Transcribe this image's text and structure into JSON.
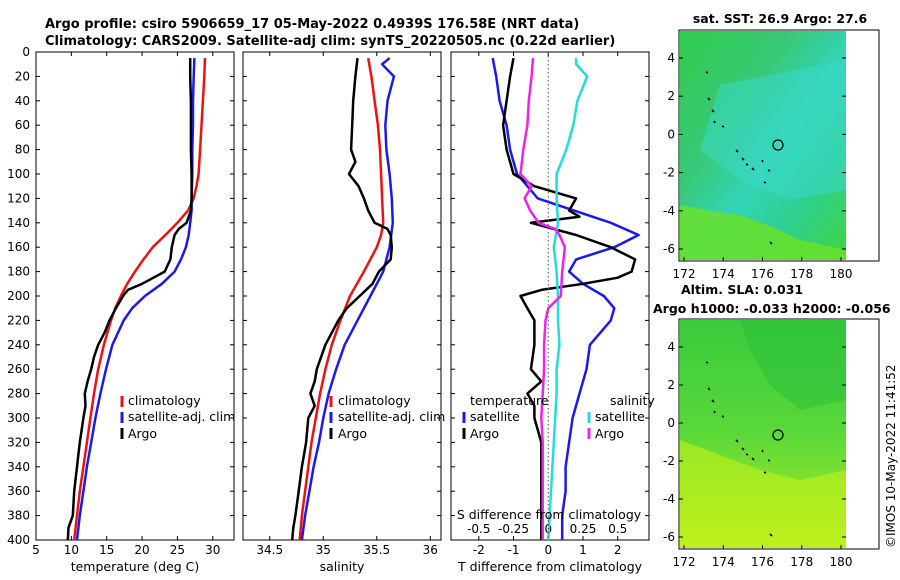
{
  "header": {
    "title_line1": "Argo profile: csiro 5906659_17 05-May-2022 0.4939S 176.58E (NRT data)",
    "title_line2": "Climatology: CARS2009. Satellite-adj clim: synTS_20220505.nc (0.22d earlier)"
  },
  "colors": {
    "climatology": "#ee1111",
    "satellite": "#1a1aee",
    "argo": "#000000",
    "temp_diff_argo": "#000000",
    "sal_satellite": "#22dddd",
    "sal_argo": "#ee22ee",
    "zero_line": "#555555"
  },
  "chart_data": [
    {
      "type": "line",
      "panel": "temperature",
      "xlabel": "temperature (deg C)",
      "ylabel": "",
      "xlim": [
        5,
        33
      ],
      "ylim": [
        400,
        0
      ],
      "xticks": [
        5,
        10,
        15,
        20,
        25,
        30
      ],
      "yticks": [
        0,
        20,
        40,
        60,
        80,
        100,
        120,
        140,
        160,
        180,
        200,
        220,
        240,
        260,
        280,
        300,
        320,
        340,
        360,
        380,
        400
      ],
      "legend": [
        "climatology",
        "satellite-adj. clim",
        "Argo"
      ],
      "series": [
        {
          "name": "climatology",
          "depth": [
            5,
            20,
            40,
            60,
            80,
            100,
            110,
            120,
            130,
            140,
            150,
            160,
            170,
            180,
            190,
            200,
            210,
            220,
            240,
            260,
            280,
            300,
            320,
            340,
            360,
            380,
            400
          ],
          "values": [
            28.9,
            28.8,
            28.6,
            28.4,
            28.2,
            28.0,
            27.7,
            27.3,
            26.5,
            25.0,
            23.3,
            21.5,
            20.2,
            19.0,
            17.9,
            17.0,
            16.2,
            15.6,
            14.6,
            13.8,
            13.2,
            12.7,
            12.2,
            11.7,
            11.2,
            10.8,
            10.4
          ]
        },
        {
          "name": "satellite-adj. clim",
          "depth": [
            5,
            20,
            40,
            60,
            80,
            100,
            120,
            130,
            140,
            150,
            160,
            170,
            180,
            190,
            200,
            210,
            220,
            240,
            260,
            280,
            300,
            320,
            340,
            360,
            380,
            400
          ],
          "values": [
            27.4,
            27.3,
            27.2,
            27.2,
            27.1,
            27.1,
            27.0,
            27.0,
            26.8,
            26.6,
            26.2,
            25.5,
            24.6,
            22.8,
            20.4,
            18.6,
            17.4,
            15.8,
            14.9,
            14.1,
            13.4,
            12.8,
            12.2,
            11.7,
            11.2,
            10.8
          ]
        },
        {
          "name": "Argo",
          "depth": [
            5,
            20,
            40,
            60,
            80,
            100,
            120,
            130,
            140,
            145,
            150,
            160,
            170,
            180,
            190,
            195,
            200,
            210,
            220,
            230,
            240,
            250,
            260,
            270,
            280,
            290,
            300,
            320,
            340,
            360,
            380,
            390,
            400
          ],
          "values": [
            26.8,
            26.8,
            26.9,
            26.9,
            26.9,
            27.0,
            27.0,
            26.9,
            26.3,
            25.2,
            24.6,
            24.2,
            24.0,
            23.2,
            20.0,
            18.0,
            17.3,
            16.3,
            15.4,
            14.7,
            13.8,
            13.2,
            12.8,
            12.3,
            11.9,
            12.0,
            11.7,
            11.2,
            10.8,
            10.4,
            10.2,
            9.6,
            9.5
          ]
        }
      ]
    },
    {
      "type": "line",
      "panel": "salinity",
      "xlabel": "salinity",
      "xlim": [
        34.25,
        36.1
      ],
      "ylim": [
        400,
        0
      ],
      "xticks": [
        34.5,
        35,
        35.5,
        36
      ],
      "legend": [
        "climatology",
        "satellite-adj. clim",
        "Argo"
      ],
      "series": [
        {
          "name": "climatology",
          "depth": [
            5,
            20,
            40,
            60,
            80,
            100,
            120,
            140,
            150,
            160,
            180,
            200,
            220,
            240,
            260,
            280,
            300,
            320,
            340,
            360,
            380,
            400
          ],
          "values": [
            35.42,
            35.45,
            35.48,
            35.51,
            35.53,
            35.54,
            35.55,
            35.56,
            35.54,
            35.5,
            35.38,
            35.25,
            35.16,
            35.08,
            35.02,
            34.97,
            34.93,
            34.89,
            34.86,
            34.83,
            34.8,
            34.78
          ]
        },
        {
          "name": "satellite-adj. clim",
          "depth": [
            5,
            10,
            20,
            40,
            60,
            80,
            100,
            120,
            140,
            160,
            180,
            200,
            220,
            240,
            260,
            280,
            300,
            320,
            340,
            360,
            380,
            400
          ],
          "values": [
            35.62,
            35.55,
            35.66,
            35.6,
            35.58,
            35.59,
            35.62,
            35.64,
            35.65,
            35.62,
            35.56,
            35.44,
            35.32,
            35.2,
            35.12,
            35.05,
            35.0,
            34.96,
            34.91,
            34.87,
            34.83,
            34.8
          ]
        },
        {
          "name": "Argo",
          "depth": [
            5,
            20,
            40,
            60,
            80,
            90,
            100,
            110,
            120,
            130,
            140,
            145,
            150,
            160,
            170,
            180,
            190,
            200,
            210,
            220,
            240,
            260,
            270,
            280,
            290,
            300,
            320,
            340,
            360,
            380,
            390,
            400
          ],
          "values": [
            35.32,
            35.3,
            35.28,
            35.27,
            35.26,
            35.3,
            35.24,
            35.33,
            35.38,
            35.42,
            35.48,
            35.6,
            35.63,
            35.64,
            35.63,
            35.52,
            35.46,
            35.34,
            35.22,
            35.14,
            35.02,
            34.94,
            34.92,
            34.88,
            34.92,
            34.86,
            34.84,
            34.8,
            34.77,
            34.74,
            34.72,
            34.71
          ]
        }
      ]
    },
    {
      "type": "line",
      "panel": "difference",
      "xlabel": "T difference from climatology",
      "xlabel_top": "S difference from climatology",
      "xlim": [
        -2.8,
        2.9
      ],
      "ylim": [
        400,
        0
      ],
      "xticks": [
        -2,
        -1,
        0,
        1,
        2
      ],
      "xticks_S_labels": [
        "-0.5",
        "-0.25",
        "0",
        "0.25",
        "0.5"
      ],
      "xticks_S_values": [
        -0.5,
        -0.25,
        0,
        0.25,
        0.5
      ],
      "legend_temperature_title": "temperature",
      "legend_salinity_title": "salinity",
      "legend_labels": [
        "satellite",
        "Argo",
        "satellite",
        "Argo"
      ],
      "series": [
        {
          "name": "temperature satellite",
          "units": "degC",
          "depth": [
            5,
            20,
            40,
            60,
            80,
            100,
            120,
            140,
            150,
            160,
            170,
            180,
            190,
            200,
            210,
            220,
            240,
            260,
            280,
            300,
            320,
            340,
            360,
            380,
            400
          ],
          "values": [
            -1.6,
            -1.5,
            -1.4,
            -1.2,
            -1.1,
            -0.9,
            -0.3,
            1.8,
            2.6,
            1.9,
            0.8,
            0.6,
            1.0,
            1.6,
            1.9,
            1.8,
            1.2,
            1.1,
            0.9,
            0.7,
            0.6,
            0.5,
            0.5,
            0.4,
            0.4
          ]
        },
        {
          "name": "temperature Argo",
          "units": "degC",
          "depth": [
            5,
            20,
            40,
            60,
            80,
            100,
            110,
            120,
            130,
            135,
            140,
            150,
            160,
            170,
            180,
            185,
            190,
            195,
            200,
            210,
            220,
            240,
            260,
            270,
            280,
            290,
            300,
            320,
            340,
            360,
            380,
            400
          ],
          "values": [
            -1.0,
            -1.1,
            -1.2,
            -1.3,
            -1.2,
            -1.0,
            -0.4,
            0.8,
            0.6,
            0.9,
            -0.5,
            0.8,
            1.8,
            2.5,
            2.4,
            2.0,
            1.0,
            -0.2,
            -0.8,
            -0.6,
            -0.4,
            -0.4,
            -0.5,
            -0.2,
            -0.6,
            -0.4,
            -0.4,
            -0.2,
            -0.2,
            -0.2,
            -0.2,
            -0.2
          ]
        },
        {
          "name": "salinity satellite",
          "units": "psu",
          "depth": [
            5,
            10,
            20,
            40,
            60,
            80,
            100,
            120,
            140,
            160,
            180,
            200,
            220,
            240,
            260,
            280,
            300,
            320,
            340,
            360,
            380,
            400
          ],
          "values": [
            0.2,
            0.2,
            0.28,
            0.21,
            0.18,
            0.13,
            0.06,
            0.06,
            0.07,
            0.04,
            0.06,
            0.07,
            0.07,
            0.08,
            0.06,
            0.06,
            0.05,
            0.04,
            0.03,
            0.02,
            0.01,
            0.0
          ]
        },
        {
          "name": "salinity Argo",
          "units": "psu",
          "depth": [
            5,
            20,
            40,
            60,
            80,
            100,
            110,
            120,
            130,
            140,
            145,
            150,
            160,
            180,
            200,
            210,
            220,
            240,
            260,
            280,
            300,
            320,
            340,
            360,
            380,
            400
          ],
          "values": [
            -0.11,
            -0.12,
            -0.14,
            -0.15,
            -0.18,
            -0.2,
            -0.12,
            -0.17,
            -0.13,
            -0.07,
            0.05,
            0.08,
            0.12,
            0.1,
            0.09,
            0.0,
            -0.02,
            -0.03,
            -0.03,
            -0.04,
            -0.05,
            -0.04,
            -0.04,
            -0.04,
            -0.04,
            -0.04
          ]
        }
      ]
    }
  ],
  "maps": {
    "sst": {
      "title_line1": "sat. SST: 26.9 Argo: 27.6",
      "xticks": [
        "172",
        "174",
        "176",
        "178",
        "180"
      ],
      "yticks": [
        "4",
        "2",
        "0",
        "-2",
        "-4",
        "-6"
      ]
    },
    "sla": {
      "title_line1": "Altim. SLA: 0.031",
      "title_line2": "Argo h1000: -0.033 h2000: -0.056",
      "xticks": [
        "172",
        "174",
        "176",
        "178",
        "180"
      ],
      "yticks": [
        "4",
        "2",
        "0",
        "-2",
        "-4",
        "-6"
      ]
    }
  },
  "footer": {
    "credit": "©IMOS 10-May-2022 11:41:52"
  }
}
